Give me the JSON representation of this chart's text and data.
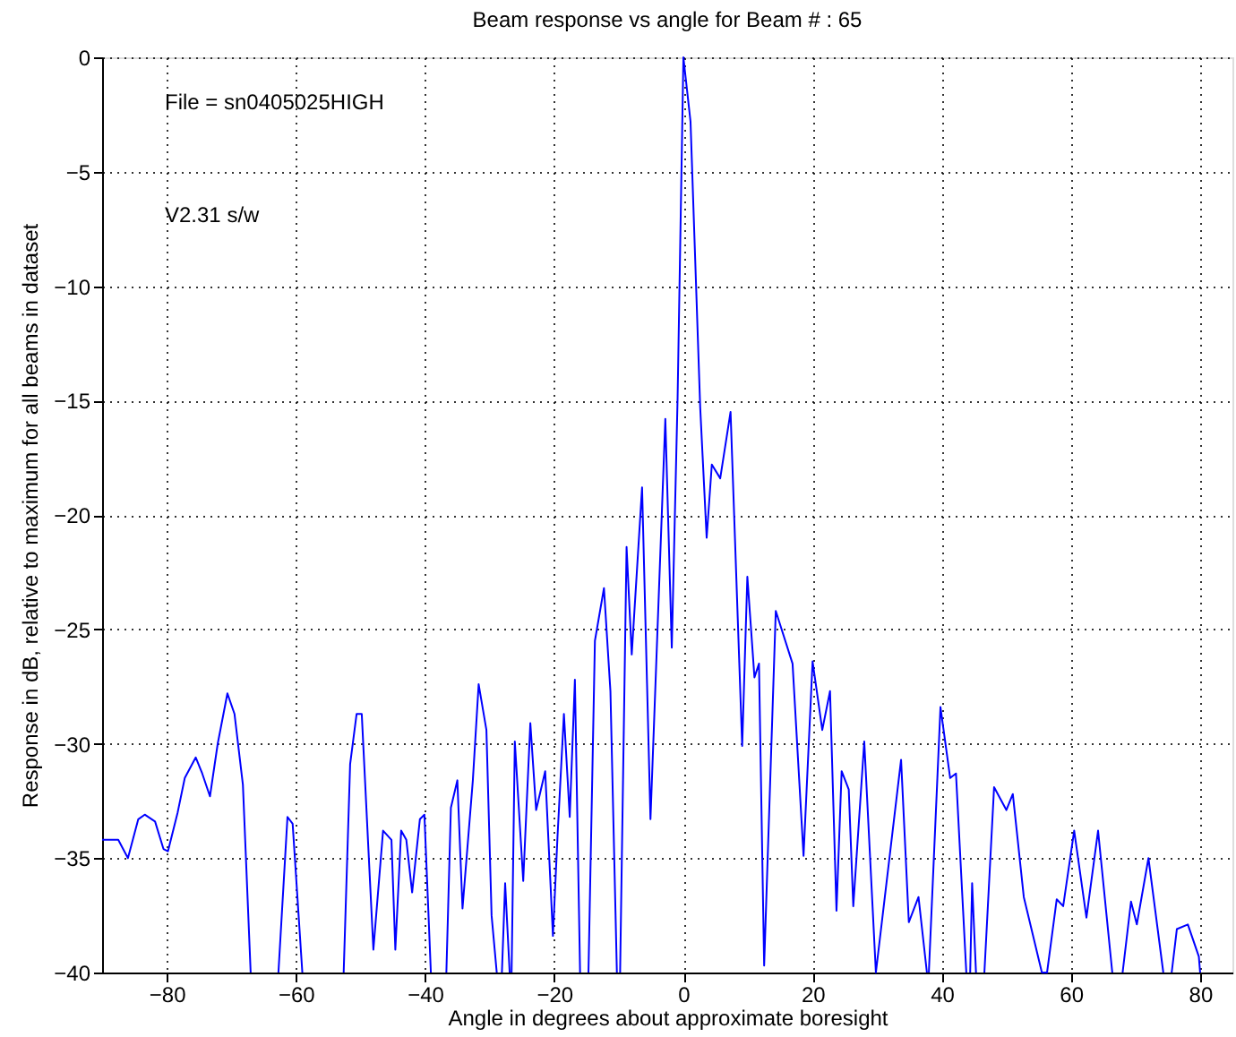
{
  "chart_data": {
    "type": "line",
    "title": "Beam response vs angle for Beam # : 65",
    "xlabel": "Angle in degrees about approximate boresight",
    "ylabel": "Response in dB, relative to maximum for all beams in dataset",
    "annotations": [
      "File = sn0405025HIGH",
      "V2.31 s/w"
    ],
    "xlim": [
      -90,
      85
    ],
    "ylim": [
      -40,
      0
    ],
    "xticks": [
      -80,
      -60,
      -40,
      -20,
      0,
      20,
      40,
      60,
      80
    ],
    "yticks": [
      -40,
      -35,
      -30,
      -25,
      -20,
      -15,
      -10,
      -5,
      0
    ],
    "grid": true,
    "marker": "none",
    "line_style": "solid",
    "x": [
      -90,
      -87.5,
      -86,
      -84.4,
      -83.4,
      -81.8,
      -80.5,
      -79.8,
      -78.3,
      -77.2,
      -75.5,
      -74.5,
      -73.3,
      -72.1,
      -70.6,
      -69.5,
      -68.2,
      -67,
      -65,
      -62.7,
      -61.3,
      -60.5,
      -59,
      -56,
      -52.6,
      -51.6,
      -50.6,
      -49.8,
      -48,
      -46.5,
      -45.2,
      -44.6,
      -43.7,
      -42.9,
      -42,
      -40.8,
      -40.1,
      -39.1,
      -38,
      -36.7,
      -36,
      -35,
      -34.2,
      -32.6,
      -31.7,
      -30.5,
      -29.7,
      -28.9,
      -28.5,
      -28.1,
      -27.6,
      -26.9,
      -26.8,
      -26.6,
      -26.1,
      -24.8,
      -23.7,
      -22.8,
      -21.4,
      -20.2,
      -19.5,
      -18.5,
      -17.6,
      -16.8,
      -16,
      -15,
      -14.7,
      -13.7,
      -12.3,
      -11.3,
      -10.3,
      -10,
      -9.8,
      -8.8,
      -8,
      -6.4,
      -5.1,
      -2.8,
      -1.8,
      -0.9,
      0,
      1.1,
      2.6,
      3.6,
      4.4,
      5.7,
      7.3,
      9.1,
      9.9,
      11,
      11.7,
      12.5,
      14.3,
      16.9,
      18.6,
      20,
      21.5,
      22.7,
      23.7,
      24.5,
      25.6,
      26.3,
      28,
      29.8,
      33.7,
      34.9,
      36.4,
      37.7,
      37.9,
      38,
      39.8,
      41.3,
      42.2,
      43.8,
      44.1,
      44.4,
      44.7,
      45.3,
      46,
      46.6,
      48.1,
      50,
      51,
      52.7,
      55.5,
      56.3,
      57.8,
      58.8,
      60.5,
      62.4,
      64.2,
      66.4,
      67.2,
      68,
      69.3,
      70.2,
      72,
      74.3,
      75,
      75.6,
      76.4,
      78.1,
      79.8,
      80
    ],
    "values": [
      -34.2,
      -34.2,
      -35,
      -33.3,
      -33.1,
      -33.4,
      -34.6,
      -34.7,
      -33,
      -31.5,
      -30.6,
      -31.3,
      -32.3,
      -30,
      -27.8,
      -28.7,
      -31.8,
      -40,
      null,
      -40,
      -33.2,
      -33.5,
      -40,
      null,
      -40,
      -30.9,
      -28.7,
      -28.7,
      -39,
      -33.8,
      -34.2,
      -39,
      -33.8,
      -34.2,
      -36.5,
      -33.3,
      -33.1,
      -40,
      null,
      -40,
      -32.8,
      -31.6,
      -37.2,
      -31.6,
      -27.4,
      -29.4,
      -37.5,
      -40,
      null,
      -40,
      -36.1,
      -40,
      null,
      -40,
      -29.9,
      -36,
      -29.1,
      -32.9,
      -31.2,
      -38.4,
      -34.1,
      -28.7,
      -33.2,
      -27.2,
      -40,
      null,
      -40,
      -25.5,
      -23.2,
      -27.7,
      -40,
      null,
      -40,
      -21.4,
      -26.1,
      -18.8,
      -33.3,
      -15.8,
      -25.8,
      -14.9,
      0,
      -2.8,
      -15.3,
      -21,
      -17.8,
      -18.4,
      -15.5,
      -30.1,
      -22.7,
      -27.1,
      -26.5,
      -39.7,
      -24.2,
      -26.5,
      -34.9,
      -26.4,
      -29.4,
      -27.7,
      -37.3,
      -31.2,
      -32,
      -37.1,
      -29.9,
      -40,
      -30.7,
      -37.8,
      -36.7,
      -40,
      null,
      -40,
      -28.4,
      -31.5,
      -31.3,
      -40,
      null,
      -40,
      -36.1,
      -40,
      null,
      -40,
      -31.9,
      -32.9,
      -32.2,
      -36.7,
      -40,
      -40,
      -36.8,
      -37.1,
      -33.8,
      -37.6,
      -33.8,
      -40,
      null,
      -40,
      -36.9,
      -37.9,
      -35,
      -40,
      null,
      -40,
      -38.1,
      -37.9,
      -39.3,
      -40
    ],
    "color": "#0000ff"
  }
}
